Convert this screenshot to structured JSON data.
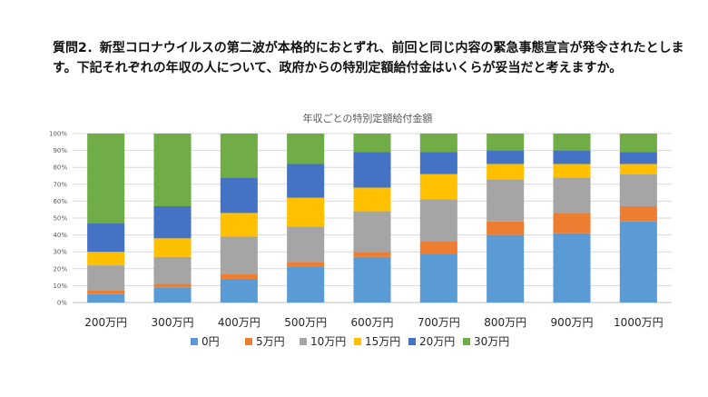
{
  "question": "質問2．新型コロナウイルスの第二波が本格的におとずれ、前回と同じ内容の緊急事態宣言が発令されたとします。下記それぞれの年収の人について、政府からの特別定額給付金はいくらが妥当だと考えますか。",
  "chart_data": {
    "type": "bar",
    "stacked": true,
    "percent": true,
    "title": "年収ごとの特別定額給付金額",
    "categories": [
      "200万円",
      "300万円",
      "400万円",
      "500万円",
      "600万円",
      "700万円",
      "800万円",
      "900万円",
      "1000万円"
    ],
    "yticks": [
      "0%",
      "10%",
      "20%",
      "30%",
      "40%",
      "50%",
      "60%",
      "70%",
      "80%",
      "90%",
      "100%"
    ],
    "ylim": [
      0,
      100
    ],
    "grid": true,
    "legend_position": "bottom",
    "series": [
      {
        "name": "0円",
        "color": "#5B9BD5",
        "values": [
          5,
          9,
          14,
          21,
          27,
          29,
          40,
          41,
          48
        ]
      },
      {
        "name": "5万円",
        "color": "#ED7D31",
        "values": [
          2,
          2,
          3,
          3,
          3,
          7,
          8,
          12,
          9
        ]
      },
      {
        "name": "10万円",
        "color": "#A5A5A5",
        "values": [
          15,
          16,
          22,
          21,
          24,
          25,
          25,
          21,
          19
        ]
      },
      {
        "name": "15万円",
        "color": "#FFC000",
        "values": [
          8,
          11,
          14,
          17,
          14,
          15,
          9,
          8,
          6
        ]
      },
      {
        "name": "20万円",
        "color": "#4472C4",
        "values": [
          17,
          19,
          21,
          20,
          21,
          13,
          8,
          8,
          7
        ]
      },
      {
        "name": "30万円",
        "color": "#70AD47",
        "values": [
          53,
          43,
          26,
          18,
          11,
          11,
          10,
          10,
          11
        ]
      }
    ]
  }
}
